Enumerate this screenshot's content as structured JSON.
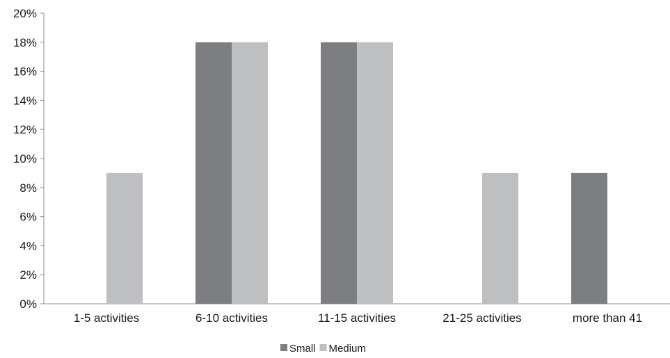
{
  "chart_data": {
    "type": "bar",
    "title": "",
    "xlabel": "",
    "ylabel": "",
    "categories": [
      "1-5 activities",
      "6-10 activities",
      "11-15 activities",
      "21-25 activities",
      "more than 41"
    ],
    "series": [
      {
        "name": "Small",
        "color": "#7d7e82",
        "values": [
          0,
          18,
          18,
          0,
          9
        ]
      },
      {
        "name": "Medium",
        "color": "#bebfc1",
        "values": [
          9,
          18,
          18,
          9,
          0
        ]
      }
    ],
    "ylim": [
      0,
      20
    ],
    "yticks": [
      "0%",
      "2%",
      "4%",
      "6%",
      "8%",
      "10%",
      "12%",
      "14%",
      "16%",
      "18%",
      "20%"
    ],
    "grid": false,
    "legend_position": "bottom-center"
  }
}
